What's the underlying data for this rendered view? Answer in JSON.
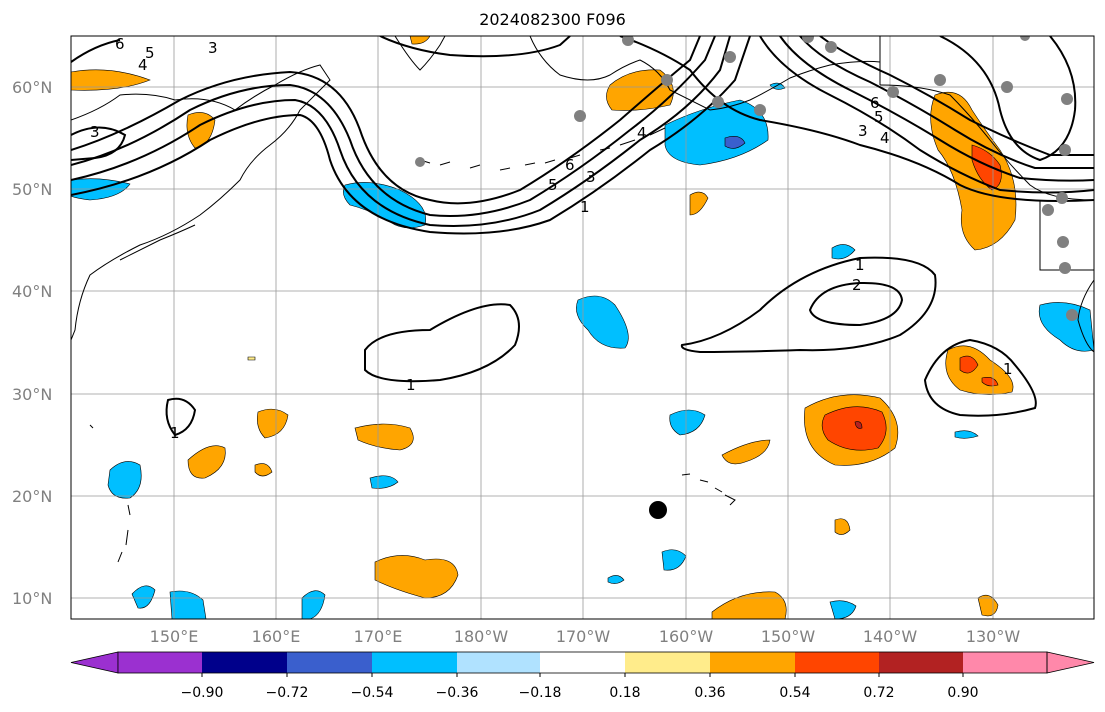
{
  "title": "2024082300 F096",
  "lat_labels": [
    "60°N",
    "50°N",
    "40°N",
    "30°N",
    "20°N",
    "10°N"
  ],
  "lon_labels": [
    "150°E",
    "160°E",
    "170°E",
    "180°W",
    "170°W",
    "160°W",
    "150°W",
    "140°W",
    "130°W"
  ],
  "colorbar": {
    "ticks": [
      "−0.90",
      "−0.72",
      "−0.54",
      "−0.36",
      "−0.18",
      "0.18",
      "0.36",
      "0.54",
      "0.72",
      "0.90"
    ],
    "colors": [
      "#9b30d0",
      "#00008b",
      "#3a5fcd",
      "#00bfff",
      "#b0e2ff",
      "#ffffff",
      "#ffec8b",
      "#ffa500",
      "#ff4500",
      "#b22222",
      "#ff88aa"
    ]
  },
  "contour_labels": [
    "6",
    "5",
    "4",
    "3",
    "3",
    "6",
    "5",
    "4",
    "3",
    "1",
    "6",
    "5",
    "4",
    "3",
    "1",
    "2",
    "1",
    "1",
    "1"
  ],
  "marker": "hurricane-center-dot"
}
